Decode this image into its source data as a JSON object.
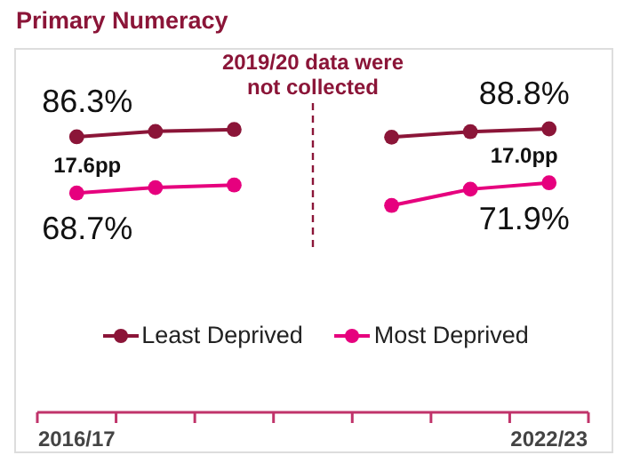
{
  "chart_data": {
    "type": "line",
    "title": "Primary Numeracy",
    "categories": [
      "2016/17",
      null,
      null,
      null,
      null,
      null,
      "2022/23"
    ],
    "tick_labels": "x",
    "series": [
      {
        "name": "Least Deprived",
        "color": "#8b1538",
        "values": [
          86.3,
          88.0,
          88.6,
          null,
          86.2,
          87.9,
          88.8
        ],
        "value_labels": [
          "86.3%",
          null,
          null,
          null,
          null,
          null,
          "88.8%"
        ]
      },
      {
        "name": "Most Deprived",
        "color": "#e6007e",
        "values": [
          68.7,
          70.4,
          71.2,
          null,
          64.8,
          69.9,
          71.9
        ],
        "value_labels": [
          "68.7%",
          null,
          null,
          null,
          null,
          null,
          "71.9%"
        ]
      }
    ],
    "marker": "circle",
    "line_style": "solid",
    "grid": false,
    "legend": "bottom",
    "annotations": [
      "2019/20 data were not collected",
      "17.6pp",
      "17.0pp"
    ]
  }
}
